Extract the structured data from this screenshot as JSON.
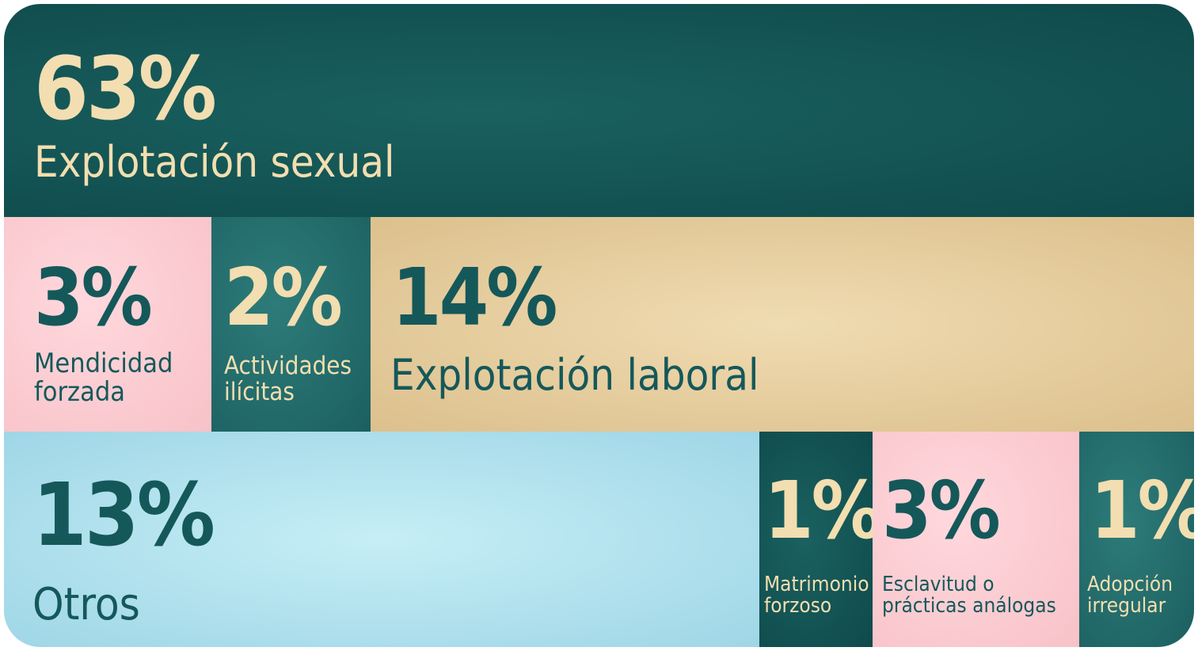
{
  "chart_data": {
    "type": "treemap",
    "title": "",
    "unit": "%",
    "items": [
      {
        "label": "Explotación sexual",
        "value": 63,
        "value_label": "63%",
        "color": "#14514f"
      },
      {
        "label": "Mendicidad\nforzada",
        "value": 3,
        "value_label": "3%",
        "color": "#fbccd2"
      },
      {
        "label": "Actividades\nilícitas",
        "value": 2,
        "value_label": "2%",
        "color": "#246c6b"
      },
      {
        "label": "Explotación laboral",
        "value": 14,
        "value_label": "14%",
        "color": "#e8d2a4"
      },
      {
        "label": "Otros",
        "value": 13,
        "value_label": "13%",
        "color": "#b6e4ef"
      },
      {
        "label": "Matrimonio\nforzoso",
        "value": 1,
        "value_label": "1%",
        "color": "#14514f"
      },
      {
        "label": "Esclavitud o\nprácticas análogas",
        "value": 3,
        "value_label": "3%",
        "color": "#fbccd2"
      },
      {
        "label": "Adopción\nirregular",
        "value": 1,
        "value_label": "1%",
        "color": "#246c6b"
      }
    ]
  }
}
